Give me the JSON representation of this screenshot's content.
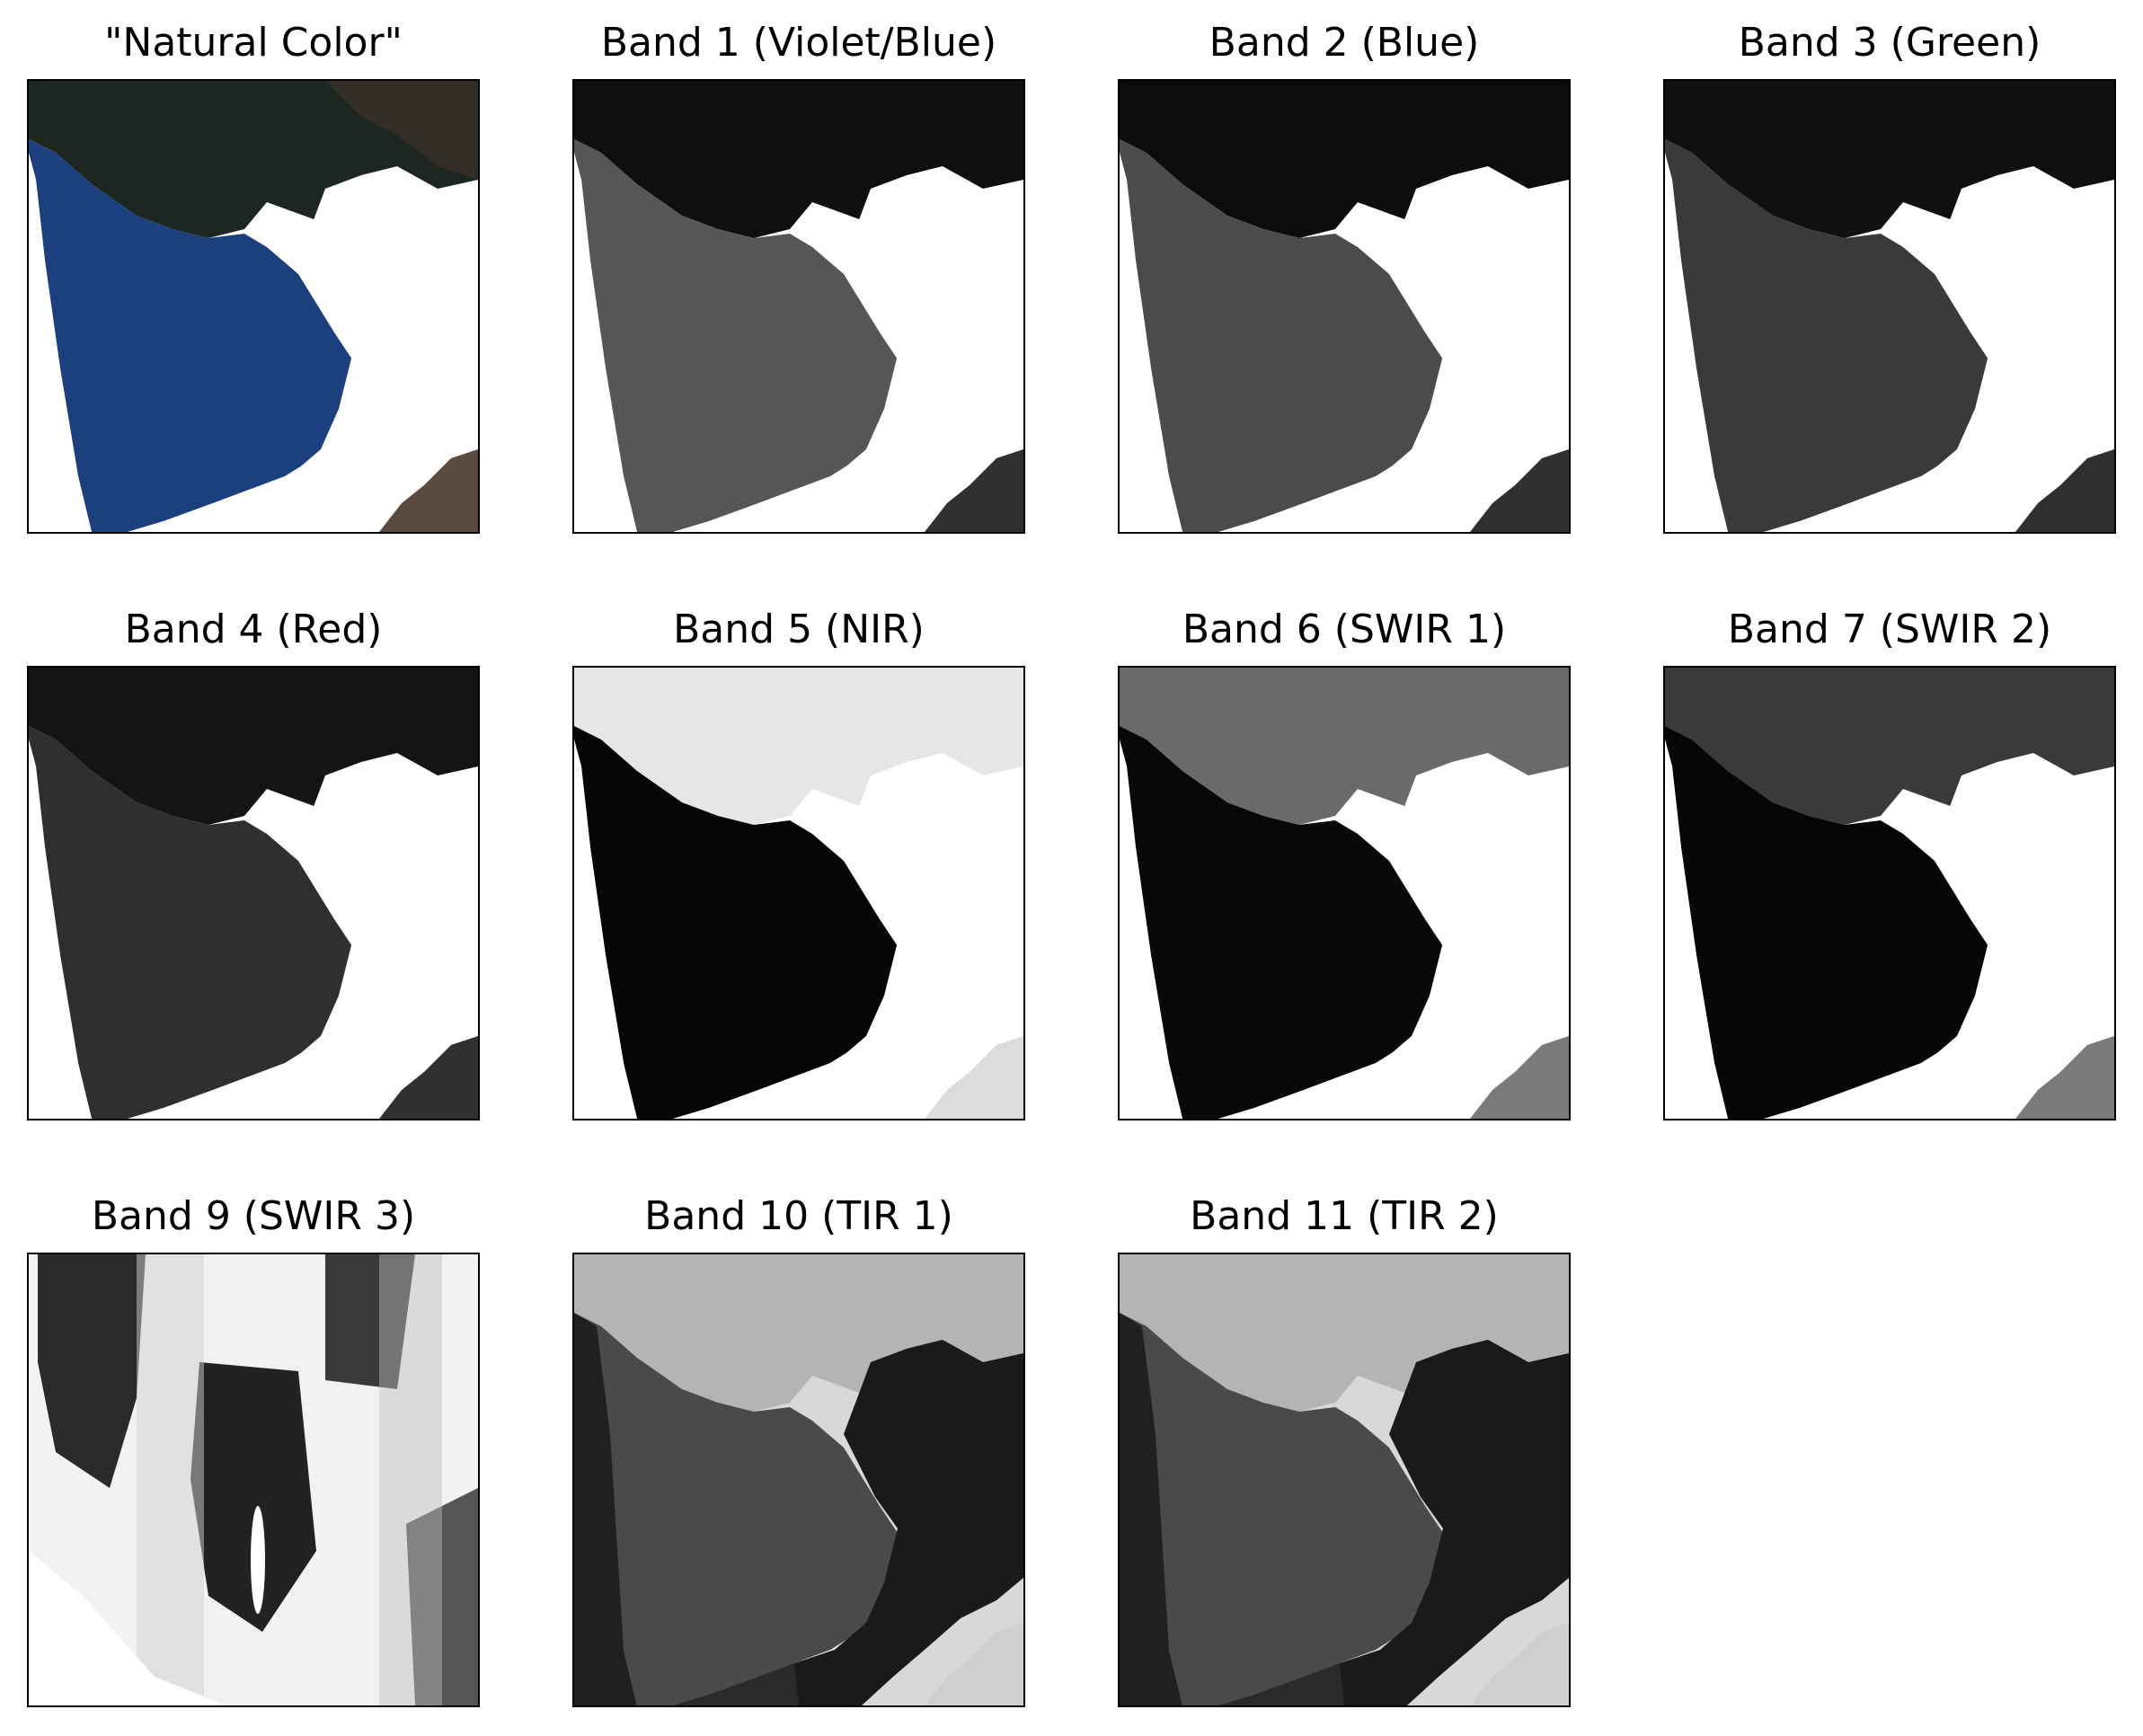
{
  "figure": {
    "panels": [
      {
        "title": "\"Natural Color\"",
        "mode": "color"
      },
      {
        "title": "Band 1 (Violet/Blue)",
        "mode": "gray",
        "water": "#565656",
        "land": "#0f0f0f"
      },
      {
        "title": "Band 2 (Blue)",
        "mode": "gray",
        "water": "#4b4b4b",
        "land": "#0c0c0c"
      },
      {
        "title": "Band 3 (Green)",
        "mode": "gray",
        "water": "#3a3a3a",
        "land": "#101010"
      },
      {
        "title": "Band 4 (Red)",
        "mode": "gray",
        "water": "#2f2f2f",
        "land": "#141414"
      },
      {
        "title": "Band 5 (NIR)",
        "mode": "inverse",
        "water": "#050505",
        "land": "#e6e6e6"
      },
      {
        "title": "Band 6 (SWIR 1)",
        "mode": "swir",
        "water": "#080808",
        "land": "#6a6a6a"
      },
      {
        "title": "Band 7 (SWIR 2)",
        "mode": "swir",
        "water": "#060606",
        "land": "#3a3a3a"
      },
      {
        "title": "Band 9 (SWIR 3)",
        "mode": "cirrus"
      },
      {
        "title": "Band 10 (TIR 1)",
        "mode": "thermal"
      },
      {
        "title": "Band 11 (TIR 2)",
        "mode": "thermal"
      }
    ]
  },
  "colors": {
    "background": "#ffffff",
    "frame": "#000000",
    "sea_blue": "#1c3f7e",
    "land_dark": "#1d2620"
  }
}
